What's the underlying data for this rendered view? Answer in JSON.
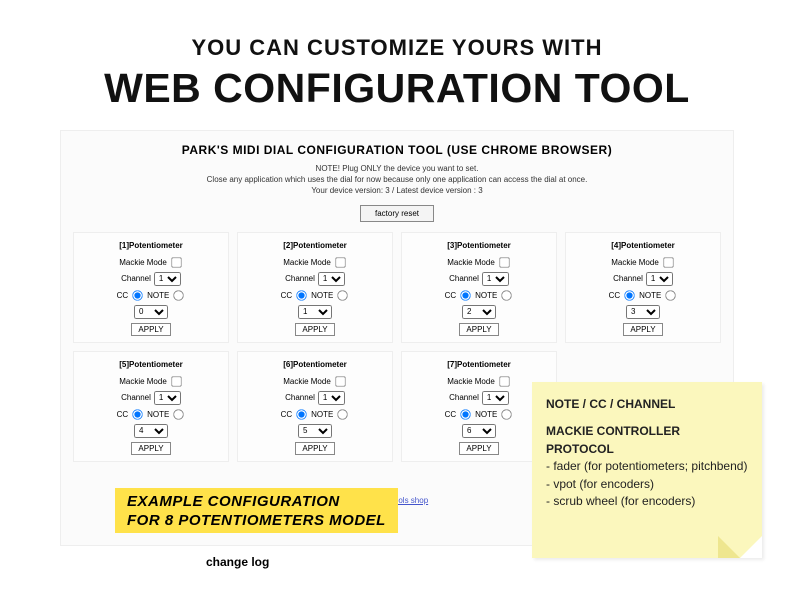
{
  "hero": {
    "line1": "YOU CAN CUSTOMIZE YOURS WITH",
    "line2": "WEB CONFIGURATION TOOL"
  },
  "tool": {
    "title": "PARK'S MIDI DIAL CONFIGURATION TOOL (USE CHROME BROWSER)",
    "note1": "NOTE! Plug ONLY the device you want to set.",
    "note2": "Close any application which uses the dial for now because only one application can access the dial at once.",
    "note3": "Your device version: 3 / Latest device version : 3",
    "factory_reset": "factory reset",
    "shop_link": "Park's Tools shop"
  },
  "labels": {
    "mackie": "Mackie Mode",
    "channel": "Channel",
    "cc": "CC",
    "note": "NOTE",
    "apply": "APPLY"
  },
  "cards": [
    {
      "title": "[1]Potentiometer",
      "channel": "1",
      "num": "0"
    },
    {
      "title": "[2]Potentiometer",
      "channel": "1",
      "num": "1"
    },
    {
      "title": "[3]Potentiometer",
      "channel": "1",
      "num": "2"
    },
    {
      "title": "[4]Potentiometer",
      "channel": "1",
      "num": "3"
    },
    {
      "title": "[5]Potentiometer",
      "channel": "1",
      "num": "4"
    },
    {
      "title": "[6]Potentiometer",
      "channel": "1",
      "num": "5"
    },
    {
      "title": "[7]Potentiometer",
      "channel": "1",
      "num": "6"
    }
  ],
  "highlight": {
    "line1": "EXAMPLE CONFIGURATION",
    "line2": "FOR 8 POTENTIOMETERS MODEL"
  },
  "sticky": {
    "head": "NOTE / CC / CHANNEL",
    "proto": "MACKIE CONTROLLER PROTOCOL",
    "b1": " - fader (for potentiometers; pitchbend)",
    "b2": " - vpot (for encoders)",
    "b3": " - scrub wheel (for encoders)"
  },
  "changelog": "change log",
  "colors": {
    "sticky_bg": "#fbf7bd",
    "highlight_bg": "#ffe24a"
  }
}
